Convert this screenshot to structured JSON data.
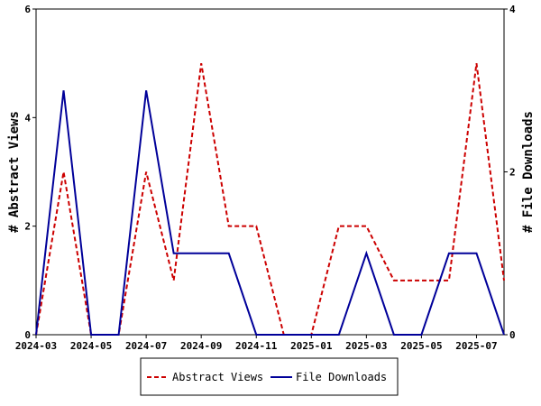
{
  "chart_data": {
    "type": "line",
    "x_dates": [
      "2024-03",
      "2024-04",
      "2024-05",
      "2024-06",
      "2024-07",
      "2024-08",
      "2024-09",
      "2024-10",
      "2024-11",
      "2024-12",
      "2025-01",
      "2025-02",
      "2025-03",
      "2025-04",
      "2025-05",
      "2025-06",
      "2025-07",
      "2025-08"
    ],
    "x_tick_labels": [
      "2024-03",
      "2024-05",
      "2024-07",
      "2024-09",
      "2024-11",
      "2025-01",
      "2025-03",
      "2025-05",
      "2025-07"
    ],
    "series": [
      {
        "name": "Abstract Views",
        "axis": "left",
        "color": "#cc0000",
        "dash": "dashed",
        "values": [
          0,
          3,
          0,
          0,
          3,
          1,
          5,
          2,
          2,
          0,
          0,
          2,
          2,
          1,
          1,
          1,
          5,
          1
        ]
      },
      {
        "name": "File Downloads",
        "axis": "right",
        "color": "#000099",
        "dash": "solid",
        "values": [
          0,
          3,
          0,
          0,
          3,
          1,
          1,
          1,
          0,
          0,
          0,
          0,
          1,
          0,
          0,
          1,
          1,
          0
        ]
      }
    ],
    "ylabel_left": "# Abstract Views",
    "ylabel_right": "# File Downloads",
    "ylim_left": [
      0,
      6
    ],
    "ylim_right": [
      0,
      4
    ],
    "yticks_left": [
      "0",
      "2",
      "4",
      "6"
    ],
    "yticks_right": [
      "0",
      "2",
      "4"
    ],
    "legend_position": "bottom-center",
    "grid": false
  }
}
